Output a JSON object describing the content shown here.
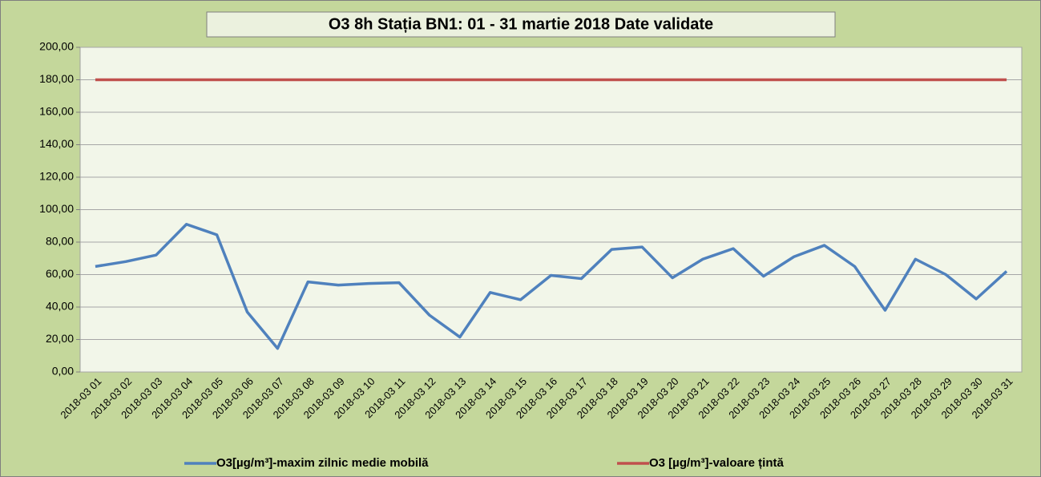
{
  "chart_data": {
    "type": "line",
    "title": "O3 8h Stația BN1: 01 - 31 martie 2018 Date validate",
    "categories": [
      "2018-03 01",
      "2018-03 02",
      "2018-03 03",
      "2018-03 04",
      "2018-03 05",
      "2018-03 06",
      "2018-03 07",
      "2018-03 08",
      "2018-03 09",
      "2018-03 10",
      "2018-03 11",
      "2018-03 12",
      "2018-03 13",
      "2018-03 14",
      "2018-03 15",
      "2018-03 16",
      "2018-03 17",
      "2018-03 18",
      "2018-03 19",
      "2018-03 20",
      "2018-03 21",
      "2018-03 22",
      "2018-03 23",
      "2018-03 24",
      "2018-03 25",
      "2018-03 26",
      "2018-03 27",
      "2018-03 28",
      "2018-03 29",
      "2018-03 30",
      "2018-03 31"
    ],
    "series": [
      {
        "name": "O3[µg/m³]-maxim zilnic medie mobilă",
        "color": "#4f81bd",
        "values": [
          65,
          68,
          72,
          91,
          84.5,
          37,
          14.5,
          55.5,
          53.5,
          54.5,
          55,
          35,
          21.5,
          49,
          44.5,
          59.5,
          57.5,
          75.5,
          77,
          58,
          69.5,
          76,
          59,
          71,
          78,
          65,
          38,
          69.5,
          60,
          45,
          62
        ]
      },
      {
        "name": "O3 [µg/m³]-valoare țintă",
        "color": "#c0504d",
        "values": [
          180,
          180,
          180,
          180,
          180,
          180,
          180,
          180,
          180,
          180,
          180,
          180,
          180,
          180,
          180,
          180,
          180,
          180,
          180,
          180,
          180,
          180,
          180,
          180,
          180,
          180,
          180,
          180,
          180,
          180,
          180
        ]
      }
    ],
    "ylim": [
      0,
      200
    ],
    "yticks": [
      {
        "value": 0,
        "label": "0,00"
      },
      {
        "value": 20,
        "label": "20,00"
      },
      {
        "value": 40,
        "label": "40,00"
      },
      {
        "value": 60,
        "label": "60,00"
      },
      {
        "value": 80,
        "label": "80,00"
      },
      {
        "value": 100,
        "label": "100,00"
      },
      {
        "value": 120,
        "label": "120,00"
      },
      {
        "value": 140,
        "label": "140,00"
      },
      {
        "value": 160,
        "label": "160,00"
      },
      {
        "value": 180,
        "label": "180,00"
      },
      {
        "value": 200,
        "label": "200,00"
      }
    ],
    "grid": true,
    "legend": "bottom"
  }
}
